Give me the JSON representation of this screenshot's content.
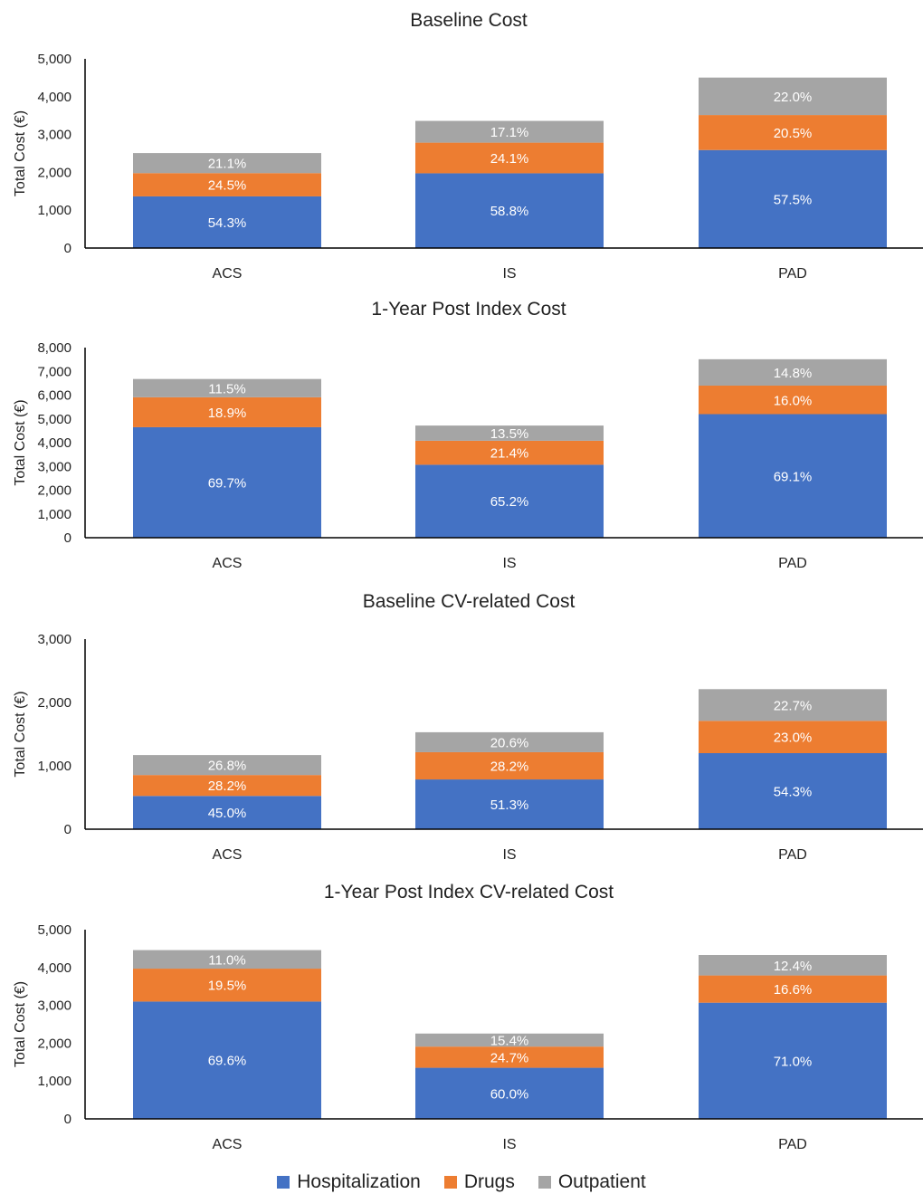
{
  "colors": {
    "Hospitalization": "#4472c4",
    "Drugs": "#ed7d31",
    "Outpatient": "#a5a5a5",
    "axis": "#000000",
    "text": "#222222"
  },
  "legend": [
    {
      "name": "Hospitalization",
      "color": "#4472c4"
    },
    {
      "name": "Drugs",
      "color": "#ed7d31"
    },
    {
      "name": "Outpatient",
      "color": "#a5a5a5"
    }
  ],
  "chart_data": [
    {
      "type": "bar",
      "stacked": true,
      "title": "Baseline Cost",
      "ylabel": "Total Cost  (€)",
      "ylim": [
        0,
        5000
      ],
      "yticks": [
        0,
        1000,
        2000,
        3000,
        4000,
        5000
      ],
      "ytick_labels": [
        "0",
        "1,000",
        "2,000",
        "3,000",
        "4,000",
        "5,000"
      ],
      "categories": [
        "ACS",
        "IS",
        "PAD"
      ],
      "series": [
        {
          "name": "Hospitalization",
          "values": [
            1365,
            1975,
            2590
          ],
          "labels": [
            "54.3%",
            "58.8%",
            "57.5%"
          ]
        },
        {
          "name": "Drugs",
          "values": [
            615,
            810,
            925
          ],
          "labels": [
            "24.5%",
            "24.1%",
            "20.5%"
          ]
        },
        {
          "name": "Outpatient",
          "values": [
            530,
            575,
            990
          ],
          "labels": [
            "21.1%",
            "17.1%",
            "22.0%"
          ]
        }
      ]
    },
    {
      "type": "bar",
      "stacked": true,
      "title": "1-Year Post Index Cost",
      "ylabel": "Total Cost (€)",
      "ylim": [
        0,
        8000
      ],
      "yticks": [
        0,
        1000,
        2000,
        3000,
        4000,
        5000,
        6000,
        7000,
        8000
      ],
      "ytick_labels": [
        "0",
        "1,000",
        "2,000",
        "3,000",
        "4,000",
        "5,000",
        "6,000",
        "7,000",
        "8,000"
      ],
      "categories": [
        "ACS",
        "IS",
        "PAD"
      ],
      "series": [
        {
          "name": "Hospitalization",
          "values": [
            4650,
            3070,
            5200
          ],
          "labels": [
            "69.7%",
            "65.2%",
            "69.1%"
          ]
        },
        {
          "name": "Drugs",
          "values": [
            1260,
            1010,
            1200
          ],
          "labels": [
            "18.9%",
            "21.4%",
            "16.0%"
          ]
        },
        {
          "name": "Outpatient",
          "values": [
            770,
            640,
            1110
          ],
          "labels": [
            "11.5%",
            "13.5%",
            "14.8%"
          ]
        }
      ]
    },
    {
      "type": "bar",
      "stacked": true,
      "title": "Baseline CV-related Cost",
      "ylabel": "Total Cost  (€)",
      "ylim": [
        0,
        3000
      ],
      "yticks": [
        0,
        1000,
        2000,
        3000
      ],
      "ytick_labels": [
        "0",
        "1,000",
        "2,000",
        "3,000"
      ],
      "categories": [
        "ACS",
        "IS",
        "PAD"
      ],
      "series": [
        {
          "name": "Hospitalization",
          "values": [
            525,
            785,
            1200
          ],
          "labels": [
            "45.0%",
            "51.3%",
            "54.3%"
          ]
        },
        {
          "name": "Drugs",
          "values": [
            330,
            430,
            510
          ],
          "labels": [
            "28.2%",
            "28.2%",
            "23.0%"
          ]
        },
        {
          "name": "Outpatient",
          "values": [
            315,
            315,
            500
          ],
          "labels": [
            "26.8%",
            "20.6%",
            "22.7%"
          ]
        }
      ]
    },
    {
      "type": "bar",
      "stacked": true,
      "title": "1-Year Post Index CV-related Cost",
      "ylabel": "Total Cost (€)",
      "ylim": [
        0,
        5000
      ],
      "yticks": [
        0,
        1000,
        2000,
        3000,
        4000,
        5000
      ],
      "ytick_labels": [
        "0",
        "1,000",
        "2,000",
        "3,000",
        "4,000",
        "5,000"
      ],
      "categories": [
        "ACS",
        "IS",
        "PAD"
      ],
      "series": [
        {
          "name": "Hospitalization",
          "values": [
            3100,
            1350,
            3070
          ],
          "labels": [
            "69.6%",
            "60.0%",
            "71.0%"
          ]
        },
        {
          "name": "Drugs",
          "values": [
            870,
            560,
            720
          ],
          "labels": [
            "19.5%",
            "24.7%",
            "16.6%"
          ]
        },
        {
          "name": "Outpatient",
          "values": [
            490,
            345,
            540
          ],
          "labels": [
            "11.0%",
            "15.4%",
            "12.4%"
          ]
        }
      ]
    }
  ]
}
